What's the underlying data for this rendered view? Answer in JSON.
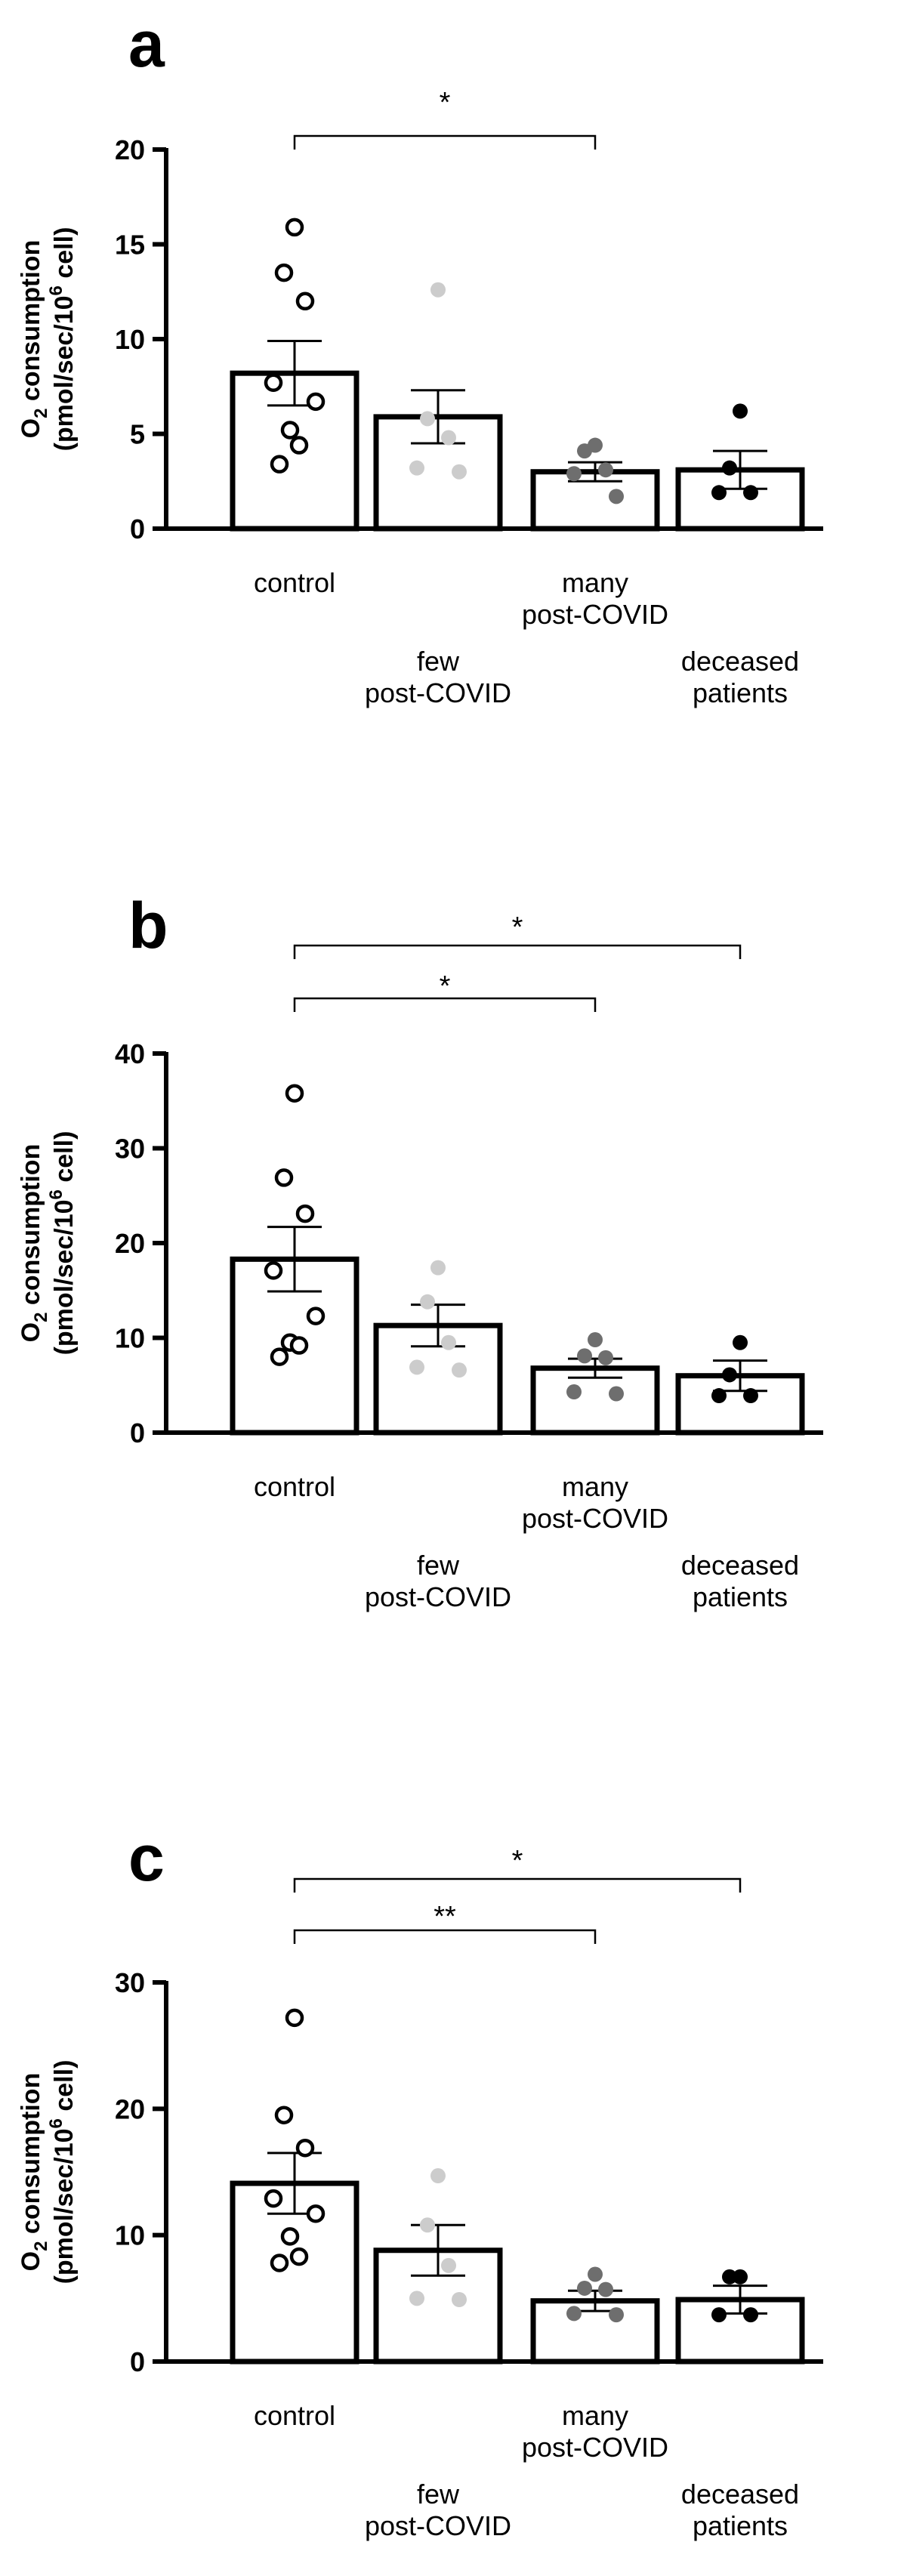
{
  "chart_data": [
    {
      "type": "bar",
      "panel": "a",
      "ylabel_main": "O",
      "ylabel_main_sub": "2",
      "ylabel_main_rest": " consumption",
      "ylabel_unit_pre": "(pmol/sec/10",
      "ylabel_unit_sup": "6",
      "ylabel_unit_post": " cell)",
      "ylim": [
        0,
        20
      ],
      "yticks": [
        "0",
        "5",
        "10",
        "15",
        "20"
      ],
      "categories": [
        {
          "lines": [
            "control"
          ],
          "row": 1
        },
        {
          "lines": [
            "few",
            "post-COVID"
          ],
          "row": 2
        },
        {
          "lines": [
            "many",
            "post-COVID"
          ],
          "row": 1
        },
        {
          "lines": [
            "deceased",
            "patients"
          ],
          "row": 2
        }
      ],
      "means": [
        8.2,
        5.9,
        3.0,
        3.1
      ],
      "sem": [
        1.7,
        1.4,
        0.5,
        1.0
      ],
      "points": [
        [
          15.9,
          13.5,
          12.0,
          7.7,
          6.7,
          5.2,
          4.4,
          3.4
        ],
        [
          12.6,
          5.8,
          4.8,
          3.2,
          3.0
        ],
        [
          4.4,
          4.1,
          3.1,
          2.9,
          1.7
        ],
        [
          6.2,
          3.2,
          1.9,
          1.9
        ]
      ],
      "point_colors": [
        "#ffffff",
        "#cccccc",
        "#6e6e6e",
        "#000000"
      ],
      "significance": [
        {
          "from": 0,
          "to": 2,
          "label": "*"
        }
      ]
    },
    {
      "type": "bar",
      "panel": "b",
      "ylabel_main": "O",
      "ylabel_main_sub": "2",
      "ylabel_main_rest": " consumption",
      "ylabel_unit_pre": "(pmol/sec/10",
      "ylabel_unit_sup": "6",
      "ylabel_unit_post": " cell)",
      "ylim": [
        0,
        40
      ],
      "yticks": [
        "0",
        "10",
        "20",
        "30",
        "40"
      ],
      "categories": [
        {
          "lines": [
            "control"
          ],
          "row": 1
        },
        {
          "lines": [
            "few",
            "post-COVID"
          ],
          "row": 2
        },
        {
          "lines": [
            "many",
            "post-COVID"
          ],
          "row": 1
        },
        {
          "lines": [
            "deceased",
            "patients"
          ],
          "row": 2
        }
      ],
      "means": [
        18.3,
        11.3,
        6.8,
        6.0
      ],
      "sem": [
        3.4,
        2.2,
        1.0,
        1.6
      ],
      "points": [
        [
          35.8,
          26.9,
          23.1,
          17.1,
          12.3,
          9.5,
          9.2,
          8.0
        ],
        [
          17.4,
          13.8,
          9.5,
          6.9,
          6.6
        ],
        [
          9.8,
          8.1,
          7.9,
          4.3,
          4.1
        ],
        [
          9.5,
          6.1,
          3.9,
          3.9
        ]
      ],
      "point_colors": [
        "#ffffff",
        "#cccccc",
        "#6e6e6e",
        "#000000"
      ],
      "significance": [
        {
          "from": 0,
          "to": 2,
          "label": "*"
        },
        {
          "from": 0,
          "to": 3,
          "label": "*"
        }
      ]
    },
    {
      "type": "bar",
      "panel": "c",
      "ylabel_main": "O",
      "ylabel_main_sub": "2",
      "ylabel_main_rest": " consumption",
      "ylabel_unit_pre": "(pmol/sec/10",
      "ylabel_unit_sup": "6",
      "ylabel_unit_post": " cell)",
      "ylim": [
        0,
        30
      ],
      "yticks": [
        "0",
        "10",
        "20",
        "30"
      ],
      "categories": [
        {
          "lines": [
            "control"
          ],
          "row": 1
        },
        {
          "lines": [
            "few",
            "post-COVID"
          ],
          "row": 2
        },
        {
          "lines": [
            "many",
            "post-COVID"
          ],
          "row": 1
        },
        {
          "lines": [
            "deceased",
            "patients"
          ],
          "row": 2
        }
      ],
      "means": [
        14.1,
        8.8,
        4.8,
        4.9
      ],
      "sem": [
        2.4,
        2.0,
        0.8,
        1.1
      ],
      "points": [
        [
          27.2,
          19.5,
          16.9,
          12.9,
          11.7,
          9.9,
          8.3,
          7.8
        ],
        [
          14.7,
          10.8,
          7.6,
          5.0,
          4.9
        ],
        [
          6.9,
          5.8,
          5.7,
          3.8,
          3.7
        ],
        [
          6.7,
          6.7,
          3.7,
          3.7
        ]
      ],
      "point_colors": [
        "#ffffff",
        "#cccccc",
        "#6e6e6e",
        "#000000"
      ],
      "significance": [
        {
          "from": 0,
          "to": 2,
          "label": "**"
        },
        {
          "from": 0,
          "to": 3,
          "label": "*"
        }
      ]
    }
  ]
}
